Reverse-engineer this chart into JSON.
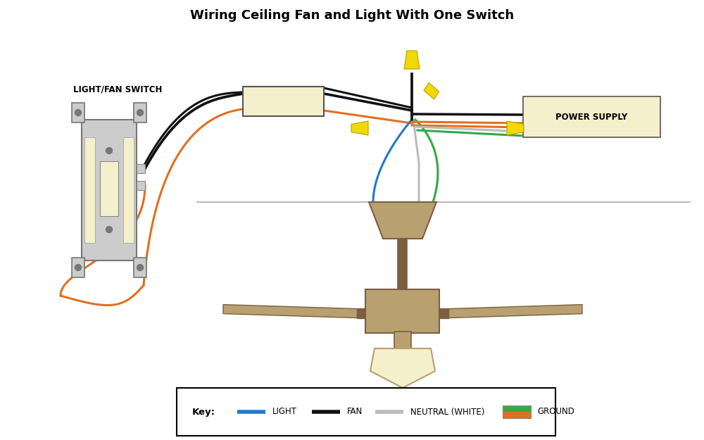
{
  "title": "Wiring Ceiling Fan and Light With One Switch",
  "title_fontsize": 13,
  "bg_color": "#ffffff",
  "switch_label": "LIGHT/FAN SWITCH",
  "power_supply_label": "POWER SUPPLY",
  "wire_colors": {
    "black": "#111111",
    "orange": "#e07020",
    "blue": "#2277cc",
    "white_neutral": "#bbbbbb",
    "green": "#33aa44"
  },
  "fan_color": "#b8a070",
  "fan_dark": "#7a6040",
  "junction_box_color": "#f5f0cc",
  "switch_body_color": "#cccccc",
  "switch_rocker_color": "#f5f0cc",
  "arrow_color": "#f0d800",
  "arrow_edge": "#b8a000",
  "ceiling_line_color": "#aaaaaa",
  "power_supply_box_color": "#f5f0cc",
  "key_labels": [
    "LIGHT",
    "FAN",
    "NEUTRAL (WHITE)",
    "GROUND"
  ],
  "key_colors": [
    "#2277cc",
    "#111111",
    "#bbbbbb",
    "#e07020"
  ],
  "key_green": "#33aa44"
}
